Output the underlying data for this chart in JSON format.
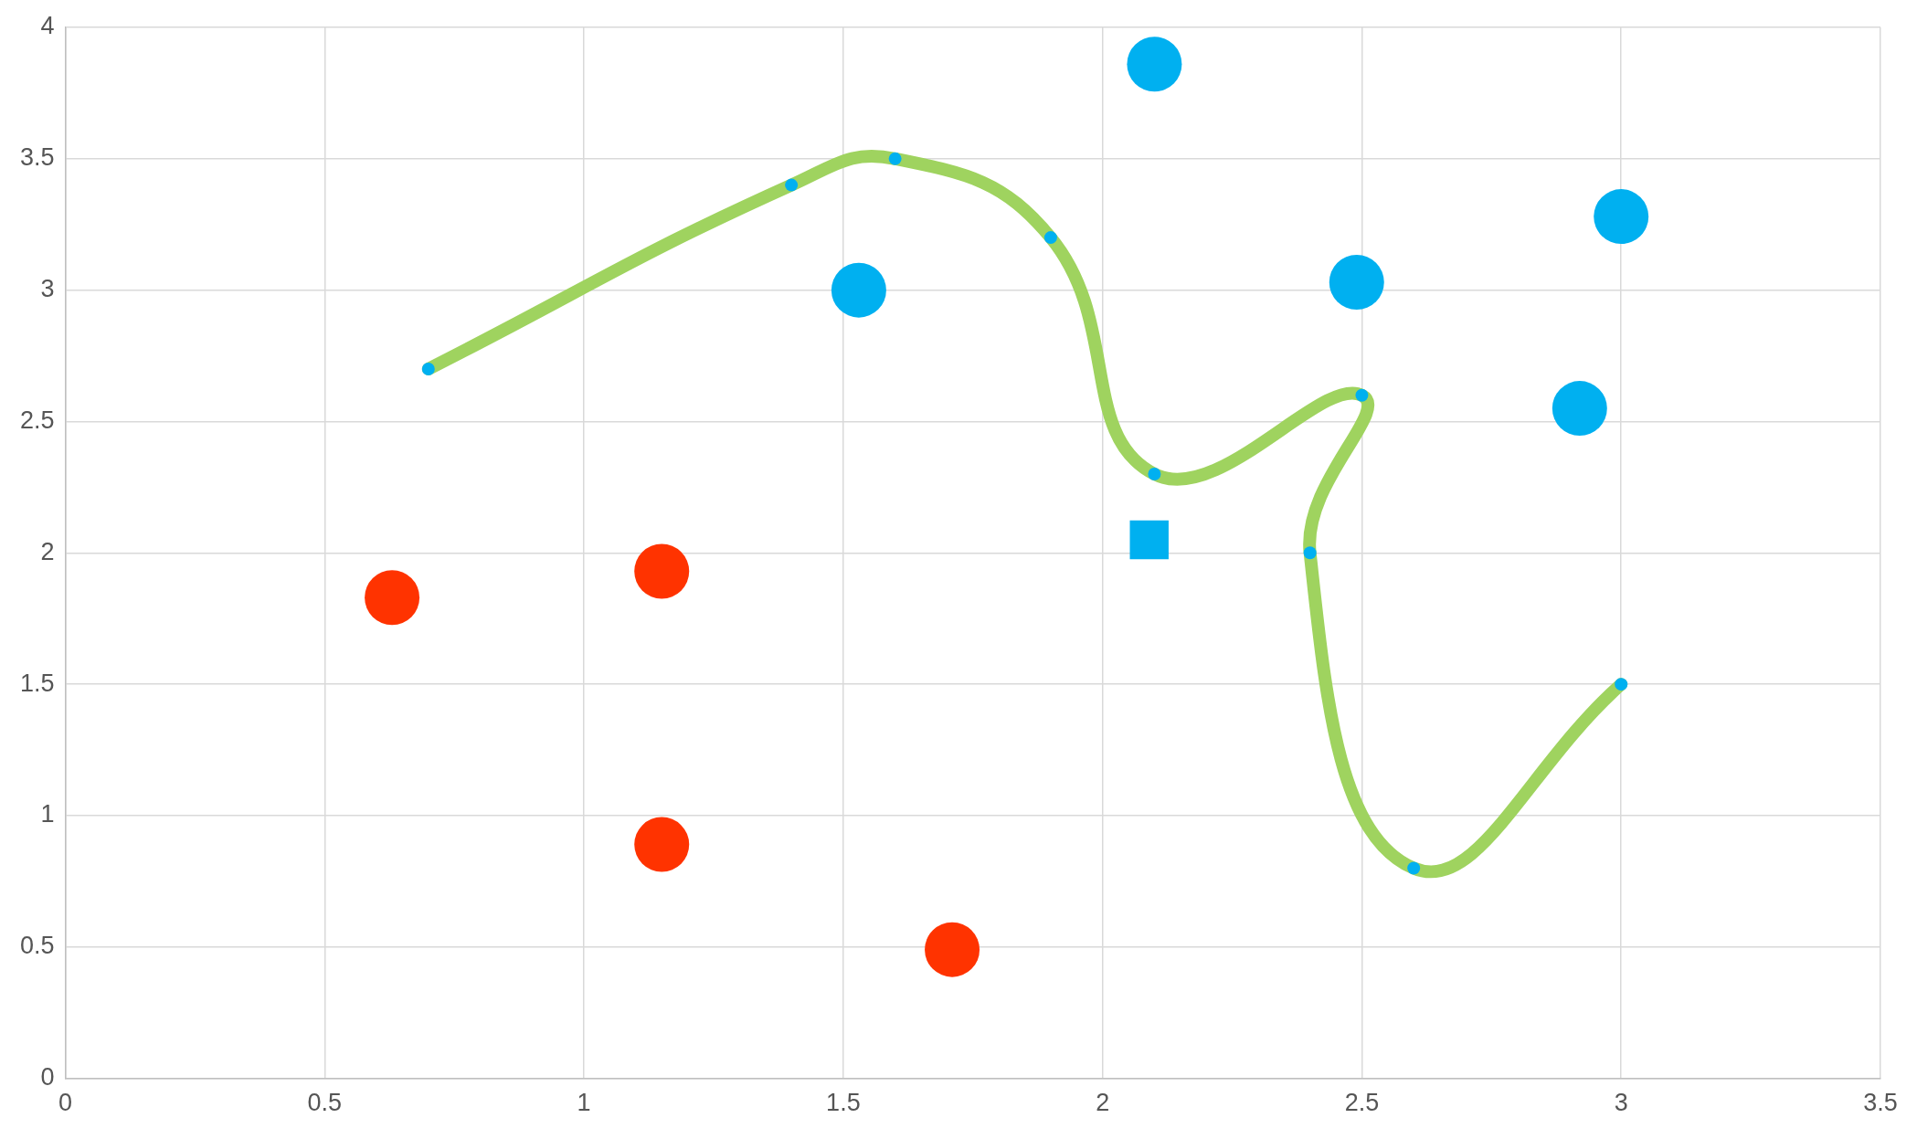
{
  "chart_data": {
    "type": "scatter",
    "xlim": [
      0,
      3.5
    ],
    "ylim": [
      0,
      4
    ],
    "xticks": [
      0,
      0.5,
      1,
      1.5,
      2,
      2.5,
      3,
      3.5
    ],
    "yticks": [
      0,
      0.5,
      1,
      1.5,
      2,
      2.5,
      3,
      3.5,
      4
    ],
    "grid": true,
    "legend": false,
    "series": [
      {
        "type": "scatter",
        "color": "#ff3300",
        "marker": "circle",
        "x": [
          0.63,
          1.15,
          1.15,
          1.71
        ],
        "values": [
          1.83,
          1.93,
          0.89,
          0.49
        ]
      },
      {
        "type": "scatter",
        "color": "#00b0f0",
        "marker": "circle",
        "x": [
          1.53,
          2.1,
          2.49,
          3.0,
          2.92
        ],
        "values": [
          3.0,
          3.86,
          3.03,
          3.28,
          2.55
        ]
      },
      {
        "type": "scatter",
        "color": "#00b0f0",
        "marker": "square",
        "x": [
          2.09
        ],
        "values": [
          2.05
        ]
      },
      {
        "type": "line",
        "color": "#9fd35f",
        "marker": "circle",
        "line_style": "solid",
        "x": [
          0.7,
          1.4,
          1.6,
          1.9,
          2.1,
          2.5,
          2.4,
          2.6,
          3.0
        ],
        "values": [
          2.7,
          3.4,
          3.5,
          3.2,
          2.3,
          2.6,
          2.0,
          0.8,
          1.5
        ]
      }
    ]
  }
}
